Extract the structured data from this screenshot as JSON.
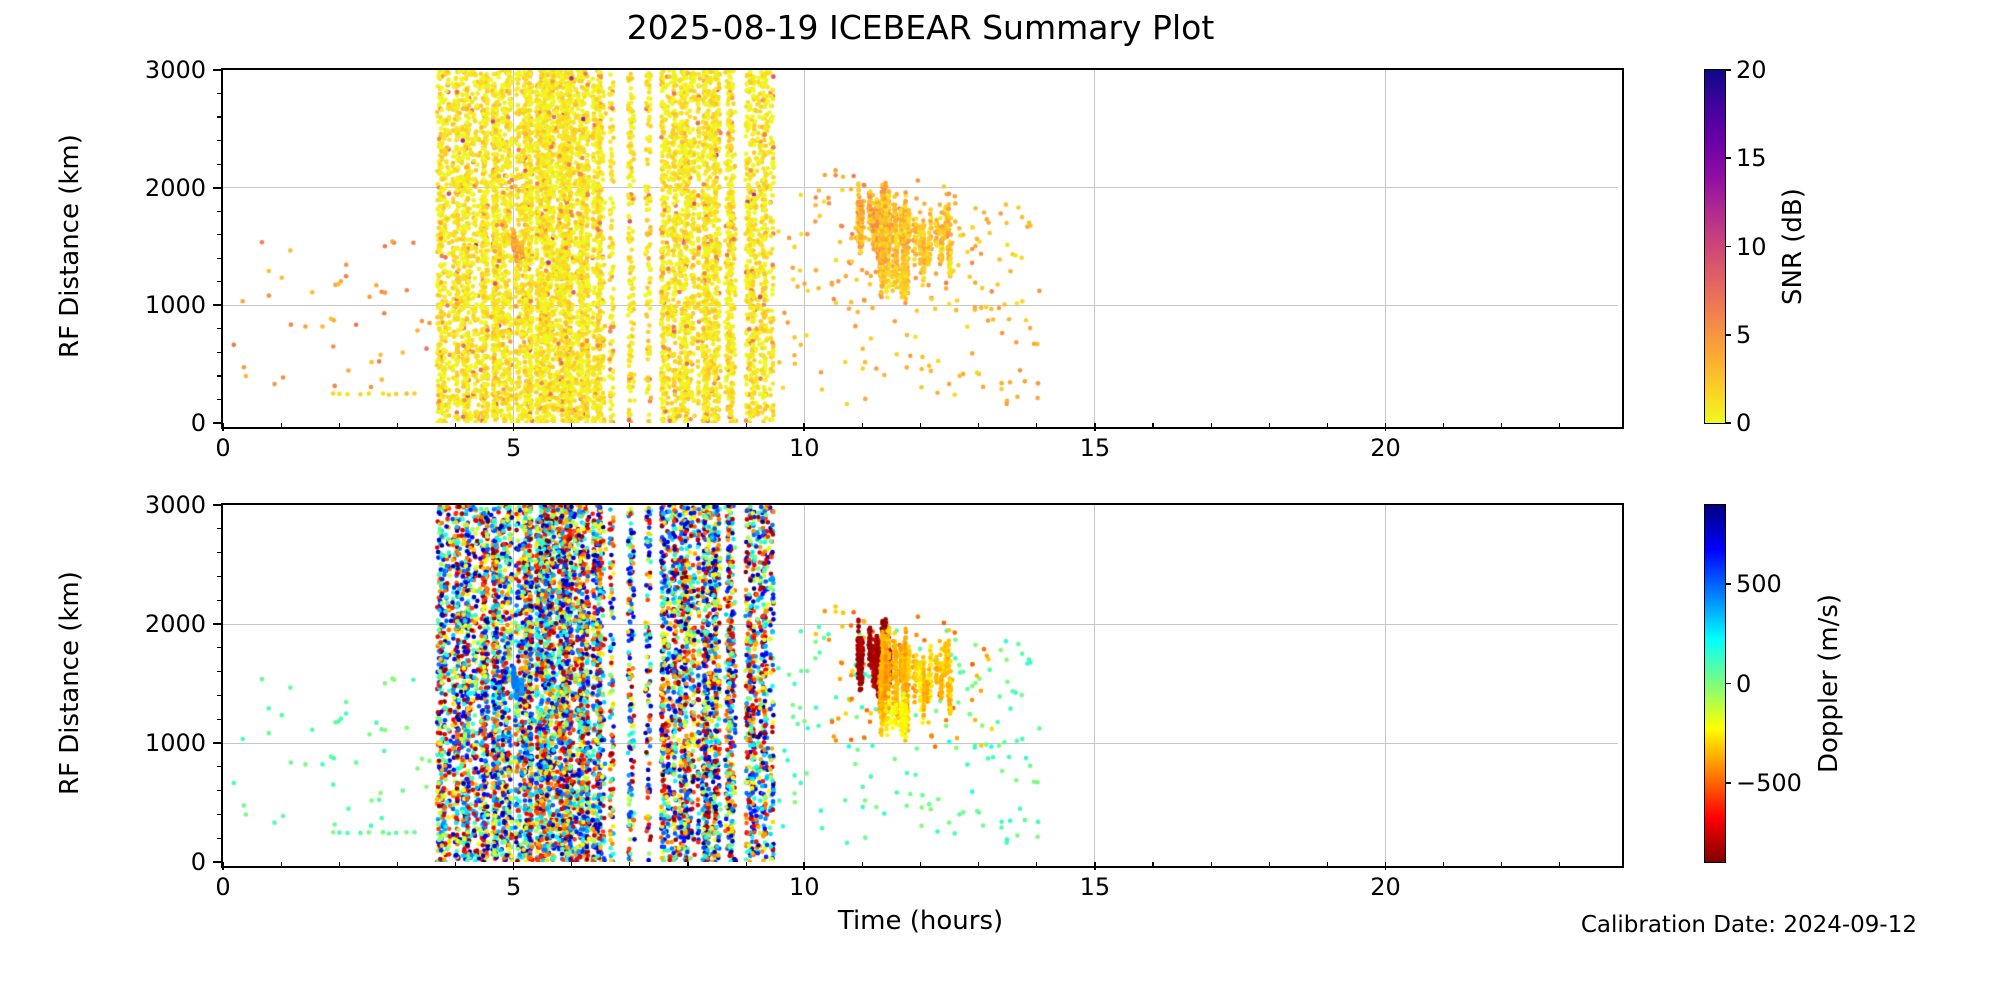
{
  "title": "2025-08-19 ICEBEAR Summary Plot",
  "calibration_note": "Calibration Date: 2024-09-12",
  "axes": {
    "xlabel": "Time (hours)",
    "ylabel": "RF Distance (km)",
    "xlim": [
      0,
      24
    ],
    "ylim": [
      0,
      3000
    ],
    "xticks": [
      0,
      5,
      10,
      15,
      20
    ],
    "yticks": [
      0,
      1000,
      2000,
      3000
    ],
    "x_minor_step": 1,
    "y_minor_step": 200,
    "grid": true,
    "grid_color": "#c6c6c6"
  },
  "panels": [
    {
      "id": "snr",
      "color_by": "snr",
      "colorbar": {
        "label": "SNR (dB)",
        "range": [
          0,
          20
        ],
        "ticks": [
          20,
          15,
          10,
          5,
          0
        ],
        "colormap": "plasma_reversed"
      }
    },
    {
      "id": "doppler",
      "color_by": "doppler",
      "colorbar": {
        "label": "Doppler (m/s)",
        "range": [
          -900,
          900
        ],
        "ticks": [
          500,
          0,
          -500
        ],
        "colormap": "jet_reversed"
      }
    }
  ],
  "chart_data": {
    "type": "scatter",
    "x_unit": "hours",
    "y_unit": "km",
    "seed": 20250819,
    "marker_radius_px": 2.3,
    "snr_band_distribution": {
      "base_max_db": 2.6,
      "orange_fraction": 0.06,
      "orange_range_db": [
        3,
        7.5
      ],
      "hot_fraction": 0.006,
      "hot_range_db": [
        7,
        13
      ]
    },
    "point_groups": [
      {
        "name": "noise-band-stripes",
        "kind": "stripes",
        "y": [
          0,
          3000
        ],
        "doppler": [
          -900,
          900
        ],
        "segments": [
          [
            3.68,
            4.56,
            1450
          ],
          [
            4.6,
            4.97,
            780
          ],
          [
            5.03,
            6.32,
            2900
          ],
          [
            6.36,
            6.6,
            430
          ],
          [
            6.65,
            6.72,
            100
          ],
          [
            6.97,
            7.08,
            150
          ],
          [
            7.27,
            7.36,
            110
          ],
          [
            7.54,
            8.12,
            980
          ],
          [
            8.17,
            8.58,
            760
          ],
          [
            8.64,
            8.82,
            330
          ],
          [
            8.99,
            9.47,
            700
          ]
        ]
      },
      {
        "name": "cyan-updraft-streak",
        "kind": "streaks",
        "x": [
          5.0,
          5.16
        ],
        "y": [
          1380,
          1610
        ],
        "n_streaks": 4,
        "pts": [
          12,
          22
        ],
        "doppler": [
          360,
          480
        ],
        "snr": [
          2,
          6
        ]
      },
      {
        "name": "early-sparse",
        "kind": "uniform",
        "n": 46,
        "x": [
          0.15,
          3.6
        ],
        "y": [
          250,
          1650
        ],
        "snr": [
          2.5,
          7
        ],
        "doppler": [
          -20,
          120
        ]
      },
      {
        "name": "low-shelf-row",
        "kind": "hline",
        "n": 10,
        "x": [
          1.8,
          3.45
        ],
        "y": 245,
        "snr": [
          1,
          3
        ],
        "doppler": [
          -20,
          90
        ]
      },
      {
        "name": "late-sparse",
        "kind": "uniform",
        "n": 160,
        "x": [
          9.55,
          14.05
        ],
        "y": [
          150,
          1980
        ],
        "snr": [
          1,
          5
        ],
        "doppler": [
          -20,
          160
        ]
      },
      {
        "name": "echo-halo",
        "kind": "uniform",
        "n": 85,
        "x": [
          10.15,
          13.25
        ],
        "y": [
          950,
          2150
        ],
        "snr": [
          1.5,
          6.5
        ],
        "doppler": [
          -520,
          -280
        ]
      },
      {
        "name": "echo-blob-extreme-negative",
        "kind": "streaks",
        "x": [
          10.92,
          11.48
        ],
        "y": [
          1450,
          1960
        ],
        "n_streaks": 26,
        "pts": [
          8,
          24
        ],
        "doppler": [
          -900,
          -790
        ],
        "snr": [
          1,
          6
        ]
      },
      {
        "name": "echo-blob-negative",
        "kind": "streaks",
        "x": [
          11.3,
          11.84
        ],
        "y": [
          1150,
          1870
        ],
        "n_streaks": 30,
        "pts": [
          8,
          26
        ],
        "doppler": [
          -430,
          -300
        ],
        "snr": [
          0.5,
          5
        ]
      },
      {
        "name": "echo-blob-mild-negative",
        "kind": "streaks",
        "x": [
          11.88,
          12.54
        ],
        "y": [
          1250,
          1880
        ],
        "n_streaks": 20,
        "pts": [
          5,
          16
        ],
        "doppler": [
          -370,
          -250
        ],
        "snr": [
          0.5,
          4.5
        ]
      },
      {
        "name": "echo-tail-yellow",
        "kind": "streaks",
        "x": [
          11.4,
          11.82
        ],
        "y": [
          1040,
          1430
        ],
        "n_streaks": 10,
        "pts": [
          4,
          10
        ],
        "doppler": [
          -290,
          -180
        ],
        "snr": [
          0.5,
          3
        ]
      }
    ]
  }
}
